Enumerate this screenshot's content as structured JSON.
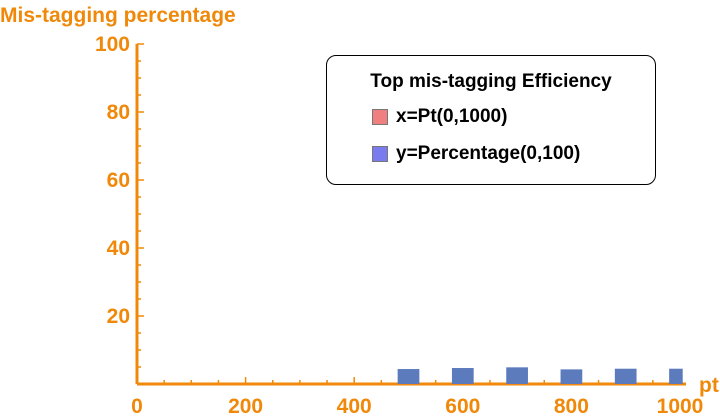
{
  "chart_data": {
    "type": "bar",
    "title": "Mis-tagging percentage",
    "xlabel": "pt",
    "ylabel": "Mis-tagging percentage",
    "xlim": [
      0,
      1000
    ],
    "ylim": [
      0,
      100
    ],
    "xticks": [
      "0",
      "200",
      "400",
      "600",
      "800",
      "1000"
    ],
    "yticks": [
      "20",
      "40",
      "60",
      "80",
      "100"
    ],
    "bar_width": 50,
    "x": [
      500,
      600,
      700,
      800,
      900,
      1000
    ],
    "values": [
      4.4,
      4.7,
      4.9,
      4.3,
      4.5,
      4.5
    ],
    "legend": {
      "title": "Top mis-tagging Efficiency",
      "position": "top-right",
      "items": [
        {
          "label": "x=Pt(0,1000)",
          "color": "#f08080"
        },
        {
          "label": "y=Percentage(0,100)",
          "color": "#7b7bf0"
        }
      ]
    },
    "colors": {
      "axis": "#f0880a",
      "bar": "#5b7bbd"
    },
    "grid": false
  }
}
